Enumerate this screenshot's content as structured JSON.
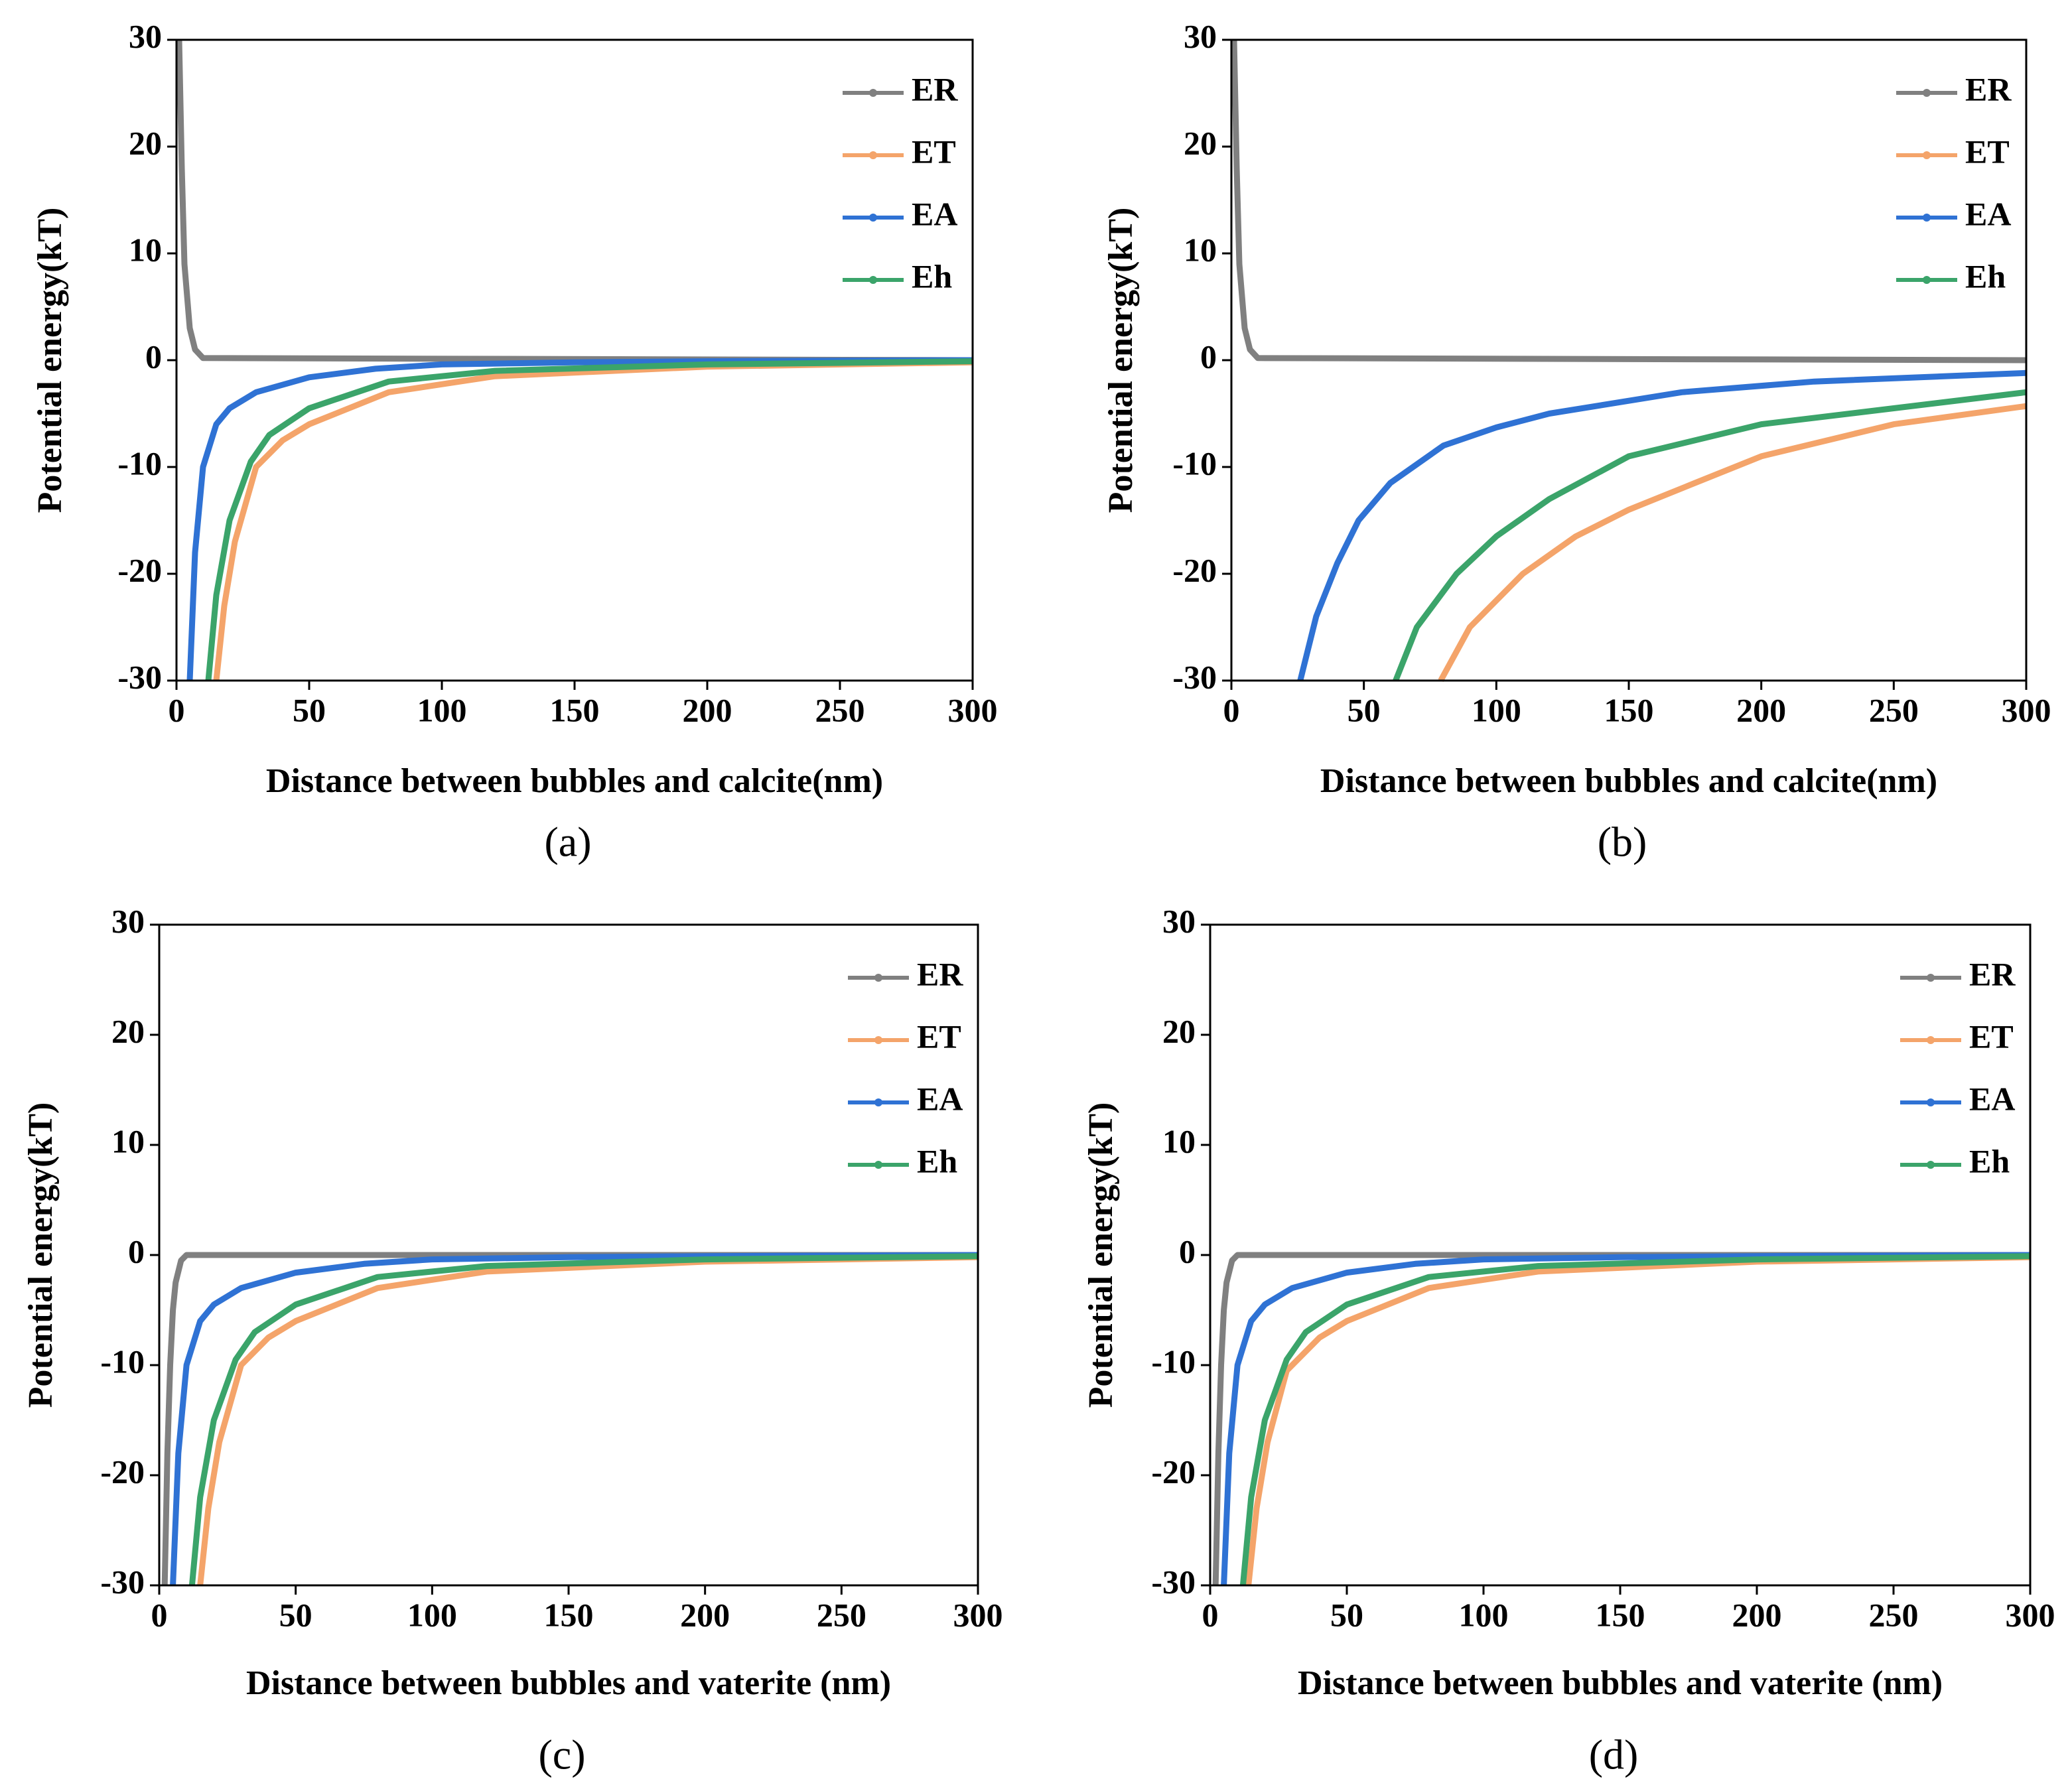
{
  "chart_data": [
    {
      "type": "line",
      "caption": "(a)",
      "xlabel": "Distance between bubbles and calcite(nm)",
      "ylabel": "Potential energy(kT)",
      "xlim": [
        0,
        300
      ],
      "ylim": [
        -30,
        30
      ],
      "xticks": [
        0,
        50,
        100,
        150,
        200,
        250,
        300
      ],
      "yticks": [
        -30,
        -20,
        -10,
        0,
        10,
        20,
        30
      ],
      "legend": "upper right",
      "series": [
        {
          "name": "ER",
          "color": "#808080",
          "x": [
            1,
            2,
            3,
            5,
            7,
            10,
            300
          ],
          "values": [
            30,
            18,
            9,
            3,
            1,
            0.2,
            0
          ]
        },
        {
          "name": "ET",
          "color": "#f4a46a",
          "x": [
            15,
            18,
            22,
            30,
            40,
            50,
            80,
            120,
            200,
            300
          ],
          "values": [
            -30,
            -23,
            -17,
            -10,
            -7.5,
            -6,
            -3,
            -1.5,
            -0.6,
            -0.2
          ]
        },
        {
          "name": "EA",
          "color": "#2f72d4",
          "x": [
            5,
            7,
            10,
            15,
            20,
            30,
            50,
            75,
            100,
            150,
            200,
            300
          ],
          "values": [
            -30,
            -18,
            -10,
            -6,
            -4.5,
            -3,
            -1.6,
            -0.8,
            -0.4,
            -0.2,
            -0.1,
            0
          ]
        },
        {
          "name": "Eh",
          "color": "#3ba46a",
          "x": [
            12,
            15,
            20,
            28,
            35,
            50,
            80,
            120,
            200,
            300
          ],
          "values": [
            -30,
            -22,
            -15,
            -9.5,
            -7,
            -4.5,
            -2,
            -1,
            -0.4,
            -0.1
          ]
        }
      ]
    },
    {
      "type": "line",
      "caption": "(b)",
      "xlabel": "Distance between bubbles and calcite(nm)",
      "ylabel": "Potential energy(kT)",
      "xlim": [
        0,
        300
      ],
      "ylim": [
        -30,
        30
      ],
      "xticks": [
        0,
        50,
        100,
        150,
        200,
        250,
        300
      ],
      "yticks": [
        -30,
        -20,
        -10,
        0,
        10,
        20,
        30
      ],
      "legend": "upper right",
      "series": [
        {
          "name": "ER",
          "color": "#808080",
          "x": [
            1,
            2,
            3,
            5,
            7,
            10,
            300
          ],
          "values": [
            30,
            18,
            9,
            3,
            1,
            0.2,
            0
          ]
        },
        {
          "name": "ET",
          "color": "#f4a46a",
          "x": [
            79,
            90,
            110,
            130,
            150,
            175,
            200,
            250,
            300
          ],
          "values": [
            -30,
            -25,
            -20,
            -16.5,
            -14,
            -11.5,
            -9,
            -6,
            -4.3
          ]
        },
        {
          "name": "EA",
          "color": "#2f72d4",
          "x": [
            26,
            32,
            40,
            48,
            60,
            80,
            100,
            120,
            170,
            220,
            300
          ],
          "values": [
            -30,
            -24,
            -19,
            -15,
            -11.5,
            -8,
            -6.3,
            -5,
            -3,
            -2,
            -1.2
          ]
        },
        {
          "name": "Eh",
          "color": "#3ba46a",
          "x": [
            62,
            70,
            85,
            100,
            120,
            150,
            200,
            250,
            300
          ],
          "values": [
            -30,
            -25,
            -20,
            -16.5,
            -13,
            -9,
            -6,
            -4.5,
            -3
          ]
        }
      ]
    },
    {
      "type": "line",
      "caption": "(c)",
      "xlabel": "Distance between bubbles and vaterite (nm)",
      "ylabel": "Potential energy(kT)",
      "xlim": [
        0,
        300
      ],
      "ylim": [
        -30,
        30
      ],
      "xticks": [
        0,
        50,
        100,
        150,
        200,
        250,
        300
      ],
      "yticks": [
        -30,
        -20,
        -10,
        0,
        10,
        20,
        30
      ],
      "legend": "upper right",
      "series": [
        {
          "name": "ER",
          "color": "#808080",
          "x": [
            2,
            3,
            4,
            5,
            6,
            8,
            10,
            300
          ],
          "values": [
            -30,
            -18,
            -10,
            -5,
            -2.5,
            -0.5,
            0,
            0
          ]
        },
        {
          "name": "ET",
          "color": "#f4a46a",
          "x": [
            15,
            18,
            22,
            30,
            40,
            50,
            80,
            120,
            200,
            300
          ],
          "values": [
            -30,
            -23,
            -17,
            -10,
            -7.5,
            -6,
            -3,
            -1.5,
            -0.6,
            -0.2
          ]
        },
        {
          "name": "EA",
          "color": "#2f72d4",
          "x": [
            5,
            7,
            10,
            15,
            20,
            30,
            50,
            75,
            100,
            150,
            200,
            300
          ],
          "values": [
            -30,
            -18,
            -10,
            -6,
            -4.5,
            -3,
            -1.6,
            -0.8,
            -0.4,
            -0.2,
            -0.1,
            0
          ]
        },
        {
          "name": "Eh",
          "color": "#3ba46a",
          "x": [
            12,
            15,
            20,
            28,
            35,
            50,
            80,
            120,
            200,
            300
          ],
          "values": [
            -30,
            -22,
            -15,
            -9.5,
            -7,
            -4.5,
            -2,
            -1,
            -0.4,
            -0.1
          ]
        }
      ]
    },
    {
      "type": "line",
      "caption": "(d)",
      "xlabel": "Distance between bubbles and vaterite (nm)",
      "ylabel": "Potential energy(kT)",
      "xlim": [
        0,
        300
      ],
      "ylim": [
        -30,
        30
      ],
      "xticks": [
        0,
        50,
        100,
        150,
        200,
        250,
        300
      ],
      "yticks": [
        -30,
        -20,
        -10,
        0,
        10,
        20,
        30
      ],
      "legend": "upper right",
      "series": [
        {
          "name": "ER",
          "color": "#808080",
          "x": [
            2,
            3,
            4,
            5,
            6,
            8,
            10,
            300
          ],
          "values": [
            -30,
            -18,
            -10,
            -5,
            -2.5,
            -0.5,
            0,
            0
          ]
        },
        {
          "name": "ET",
          "color": "#f4a46a",
          "x": [
            14,
            17,
            21,
            28,
            40,
            50,
            80,
            120,
            200,
            300
          ],
          "values": [
            -30,
            -23,
            -17,
            -10.5,
            -7.5,
            -6,
            -3,
            -1.5,
            -0.6,
            -0.2
          ]
        },
        {
          "name": "EA",
          "color": "#2f72d4",
          "x": [
            5,
            7,
            10,
            15,
            20,
            30,
            50,
            75,
            100,
            150,
            200,
            300
          ],
          "values": [
            -30,
            -18,
            -10,
            -6,
            -4.5,
            -3,
            -1.6,
            -0.8,
            -0.4,
            -0.2,
            -0.1,
            0
          ]
        },
        {
          "name": "Eh",
          "color": "#3ba46a",
          "x": [
            12,
            15,
            20,
            28,
            35,
            50,
            80,
            120,
            200,
            300
          ],
          "values": [
            -30,
            -22,
            -15,
            -9.5,
            -7,
            -4.5,
            -2,
            -1,
            -0.4,
            -0.1
          ]
        }
      ]
    }
  ]
}
